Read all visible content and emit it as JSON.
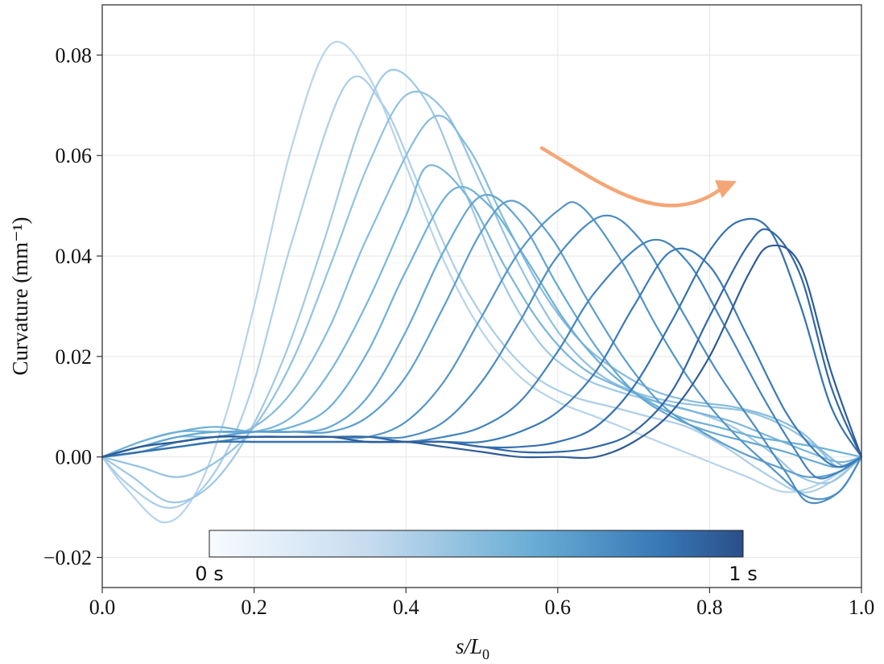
{
  "chart_data": {
    "type": "line",
    "xlabel": "s/L0",
    "xlabel_italic": "s/L",
    "xlabel_sub": "0",
    "ylabel": "Curvature (mm⁻¹)",
    "xlim": [
      0.0,
      1.0
    ],
    "ylim": [
      -0.026,
      0.09
    ],
    "x_ticks": [
      0.0,
      0.2,
      0.4,
      0.6,
      0.8,
      1.0
    ],
    "x_tick_labels": [
      "0.0",
      "0.2",
      "0.4",
      "0.6",
      "0.8",
      "1.0"
    ],
    "y_ticks": [
      -0.02,
      0.0,
      0.02,
      0.04,
      0.06,
      0.08
    ],
    "y_tick_labels": [
      "−0.02",
      "0.00",
      "0.02",
      "0.04",
      "0.06",
      "0.08"
    ],
    "grid": true,
    "colorbar": {
      "min_label": "0 s",
      "max_label": "1 s",
      "colormap": "Blues",
      "colors": [
        "#f7fbff",
        "#c6dbef",
        "#6baed6",
        "#3777b5",
        "#2b4f88"
      ]
    },
    "annotation": {
      "type": "curved-arrow",
      "meaning": "peak travels toward tail over time",
      "color": "#f4a676"
    },
    "series": [
      {
        "t": 0.0,
        "x": [
          0,
          0.03,
          0.08,
          0.12,
          0.16,
          0.2,
          0.25,
          0.3,
          0.35,
          0.4,
          0.45,
          0.5,
          0.55,
          0.6,
          0.65,
          0.7,
          0.75,
          0.8,
          0.85,
          0.9,
          0.95,
          1.0
        ],
        "y": [
          0.0,
          -0.006,
          -0.013,
          -0.008,
          0.007,
          0.03,
          0.062,
          0.082,
          0.076,
          0.058,
          0.039,
          0.025,
          0.016,
          0.011,
          0.008,
          0.005,
          0.002,
          -0.001,
          -0.004,
          -0.007,
          -0.005,
          0.0
        ]
      },
      {
        "t": 0.05,
        "x": [
          0,
          0.03,
          0.08,
          0.12,
          0.16,
          0.2,
          0.25,
          0.32,
          0.37,
          0.42,
          0.47,
          0.52,
          0.57,
          0.62,
          0.67,
          0.72,
          0.77,
          0.82,
          0.87,
          0.92,
          0.96,
          1.0
        ],
        "y": [
          0.0,
          -0.005,
          -0.01,
          -0.008,
          0.0,
          0.015,
          0.043,
          0.074,
          0.07,
          0.053,
          0.036,
          0.024,
          0.016,
          0.012,
          0.01,
          0.008,
          0.006,
          0.002,
          -0.003,
          -0.007,
          -0.005,
          0.0
        ]
      },
      {
        "t": 0.1,
        "x": [
          0,
          0.04,
          0.09,
          0.14,
          0.19,
          0.24,
          0.29,
          0.34,
          0.38,
          0.43,
          0.48,
          0.53,
          0.58,
          0.63,
          0.68,
          0.73,
          0.78,
          0.83,
          0.88,
          0.92,
          0.96,
          1.0
        ],
        "y": [
          0.0,
          -0.004,
          -0.009,
          -0.006,
          0.004,
          0.02,
          0.042,
          0.066,
          0.077,
          0.07,
          0.052,
          0.034,
          0.022,
          0.016,
          0.013,
          0.011,
          0.009,
          0.006,
          0.001,
          -0.004,
          -0.005,
          0.0
        ]
      },
      {
        "t": 0.15,
        "x": [
          0,
          0.05,
          0.1,
          0.15,
          0.2,
          0.25,
          0.3,
          0.35,
          0.4,
          0.45,
          0.5,
          0.55,
          0.6,
          0.65,
          0.7,
          0.75,
          0.8,
          0.85,
          0.9,
          0.94,
          0.97,
          1.0
        ],
        "y": [
          0.0,
          -0.002,
          -0.004,
          -0.001,
          0.006,
          0.019,
          0.038,
          0.058,
          0.072,
          0.069,
          0.054,
          0.038,
          0.025,
          0.017,
          0.013,
          0.011,
          0.01,
          0.009,
          0.006,
          0.002,
          -0.002,
          0.0
        ]
      },
      {
        "t": 0.2,
        "x": [
          0,
          0.05,
          0.1,
          0.15,
          0.2,
          0.25,
          0.3,
          0.35,
          0.43,
          0.48,
          0.53,
          0.58,
          0.63,
          0.68,
          0.73,
          0.78,
          0.83,
          0.88,
          0.92,
          0.95,
          0.98,
          1.0
        ],
        "y": [
          0.0,
          0.002,
          0.004,
          0.004,
          0.006,
          0.013,
          0.026,
          0.044,
          0.067,
          0.062,
          0.047,
          0.033,
          0.023,
          0.017,
          0.013,
          0.011,
          0.01,
          0.008,
          0.005,
          0.001,
          -0.002,
          0.0
        ]
      },
      {
        "t": 0.25,
        "x": [
          0,
          0.05,
          0.1,
          0.15,
          0.2,
          0.25,
          0.3,
          0.35,
          0.4,
          0.43,
          0.48,
          0.53,
          0.58,
          0.63,
          0.68,
          0.73,
          0.78,
          0.83,
          0.88,
          0.93,
          0.97,
          1.0
        ],
        "y": [
          0.0,
          0.003,
          0.005,
          0.005,
          0.005,
          0.008,
          0.017,
          0.031,
          0.048,
          0.058,
          0.052,
          0.038,
          0.026,
          0.018,
          0.014,
          0.011,
          0.009,
          0.007,
          0.004,
          0.001,
          -0.001,
          0.0
        ]
      },
      {
        "t": 0.3,
        "x": [
          0,
          0.05,
          0.1,
          0.15,
          0.2,
          0.25,
          0.3,
          0.35,
          0.4,
          0.46,
          0.51,
          0.56,
          0.61,
          0.66,
          0.71,
          0.76,
          0.81,
          0.86,
          0.9,
          0.94,
          0.97,
          1.0
        ],
        "y": [
          0.0,
          0.003,
          0.005,
          0.006,
          0.005,
          0.006,
          0.01,
          0.021,
          0.037,
          0.053,
          0.05,
          0.039,
          0.027,
          0.018,
          0.012,
          0.008,
          0.006,
          0.004,
          0.003,
          0.002,
          0.001,
          0.0
        ]
      },
      {
        "t": 0.35,
        "x": [
          0,
          0.05,
          0.1,
          0.15,
          0.2,
          0.25,
          0.3,
          0.35,
          0.4,
          0.45,
          0.5,
          0.55,
          0.6,
          0.65,
          0.7,
          0.75,
          0.8,
          0.85,
          0.9,
          0.94,
          0.97,
          1.0
        ],
        "y": [
          0.0,
          0.002,
          0.004,
          0.005,
          0.005,
          0.005,
          0.006,
          0.012,
          0.025,
          0.041,
          0.052,
          0.047,
          0.034,
          0.022,
          0.013,
          0.008,
          0.005,
          0.003,
          0.001,
          -0.001,
          -0.002,
          0.0
        ]
      },
      {
        "t": 0.4,
        "x": [
          0,
          0.05,
          0.1,
          0.15,
          0.2,
          0.25,
          0.3,
          0.35,
          0.4,
          0.45,
          0.5,
          0.54,
          0.59,
          0.64,
          0.69,
          0.74,
          0.79,
          0.84,
          0.89,
          0.93,
          0.97,
          1.0
        ],
        "y": [
          0.0,
          0.001,
          0.003,
          0.004,
          0.005,
          0.005,
          0.005,
          0.008,
          0.016,
          0.03,
          0.045,
          0.051,
          0.044,
          0.031,
          0.019,
          0.01,
          0.005,
          0.001,
          -0.002,
          -0.004,
          -0.003,
          0.0
        ]
      },
      {
        "t": 0.45,
        "x": [
          0,
          0.05,
          0.1,
          0.15,
          0.2,
          0.25,
          0.3,
          0.35,
          0.4,
          0.45,
          0.5,
          0.55,
          0.6,
          0.63,
          0.68,
          0.73,
          0.78,
          0.83,
          0.88,
          0.93,
          0.97,
          1.0
        ],
        "y": [
          0.0,
          0.001,
          0.003,
          0.004,
          0.004,
          0.004,
          0.004,
          0.004,
          0.007,
          0.015,
          0.028,
          0.041,
          0.049,
          0.05,
          0.04,
          0.026,
          0.014,
          0.005,
          -0.002,
          -0.008,
          -0.007,
          0.0
        ]
      },
      {
        "t": 0.5,
        "x": [
          0,
          0.05,
          0.1,
          0.15,
          0.2,
          0.25,
          0.3,
          0.35,
          0.4,
          0.45,
          0.5,
          0.55,
          0.6,
          0.66,
          0.71,
          0.76,
          0.81,
          0.86,
          0.9,
          0.93,
          0.97,
          1.0
        ],
        "y": [
          0.0,
          0.001,
          0.002,
          0.003,
          0.004,
          0.004,
          0.004,
          0.004,
          0.004,
          0.007,
          0.015,
          0.027,
          0.04,
          0.048,
          0.043,
          0.03,
          0.017,
          0.006,
          -0.003,
          -0.009,
          -0.007,
          0.0
        ]
      },
      {
        "t": 0.55,
        "x": [
          0,
          0.05,
          0.1,
          0.15,
          0.2,
          0.25,
          0.3,
          0.35,
          0.4,
          0.45,
          0.5,
          0.55,
          0.6,
          0.65,
          0.72,
          0.77,
          0.82,
          0.87,
          0.91,
          0.94,
          0.97,
          1.0
        ],
        "y": [
          0.0,
          0.001,
          0.002,
          0.003,
          0.003,
          0.003,
          0.003,
          0.003,
          0.003,
          0.004,
          0.006,
          0.011,
          0.021,
          0.033,
          0.043,
          0.039,
          0.026,
          0.012,
          0.002,
          -0.004,
          -0.003,
          0.0
        ]
      },
      {
        "t": 0.6,
        "x": [
          0,
          0.05,
          0.1,
          0.15,
          0.2,
          0.25,
          0.3,
          0.35,
          0.4,
          0.45,
          0.5,
          0.55,
          0.6,
          0.65,
          0.7,
          0.75,
          0.8,
          0.85,
          0.9,
          0.94,
          0.97,
          1.0
        ],
        "y": [
          0.0,
          0.001,
          0.002,
          0.003,
          0.003,
          0.003,
          0.003,
          0.003,
          0.003,
          0.003,
          0.003,
          0.005,
          0.009,
          0.017,
          0.03,
          0.041,
          0.038,
          0.024,
          0.009,
          0.001,
          -0.002,
          0.0
        ]
      },
      {
        "t": 0.65,
        "x": [
          0,
          0.05,
          0.1,
          0.15,
          0.2,
          0.25,
          0.3,
          0.35,
          0.4,
          0.45,
          0.5,
          0.55,
          0.6,
          0.65,
          0.7,
          0.75,
          0.8,
          0.84,
          0.88,
          0.92,
          0.96,
          1.0
        ],
        "y": [
          0.0,
          0.001,
          0.002,
          0.003,
          0.003,
          0.003,
          0.003,
          0.003,
          0.003,
          0.003,
          0.002,
          0.002,
          0.003,
          0.006,
          0.014,
          0.027,
          0.041,
          0.047,
          0.045,
          0.03,
          0.01,
          0.0
        ]
      },
      {
        "t": 0.7,
        "x": [
          0,
          0.05,
          0.1,
          0.15,
          0.2,
          0.25,
          0.3,
          0.35,
          0.4,
          0.45,
          0.5,
          0.55,
          0.6,
          0.65,
          0.7,
          0.75,
          0.8,
          0.85,
          0.88,
          0.92,
          0.96,
          1.0
        ],
        "y": [
          0.0,
          0.002,
          0.003,
          0.004,
          0.004,
          0.004,
          0.004,
          0.004,
          0.003,
          0.003,
          0.002,
          0.001,
          0.001,
          0.002,
          0.005,
          0.013,
          0.028,
          0.042,
          0.045,
          0.036,
          0.014,
          0.0
        ]
      },
      {
        "t": 0.75,
        "x": [
          0,
          0.05,
          0.1,
          0.15,
          0.2,
          0.25,
          0.3,
          0.35,
          0.4,
          0.45,
          0.5,
          0.55,
          0.6,
          0.65,
          0.7,
          0.75,
          0.8,
          0.85,
          0.88,
          0.92,
          0.96,
          1.0
        ],
        "y": [
          0.0,
          0.002,
          0.003,
          0.004,
          0.004,
          0.004,
          0.004,
          0.003,
          0.003,
          0.002,
          0.001,
          0.0,
          0.0,
          0.0,
          0.003,
          0.009,
          0.02,
          0.036,
          0.042,
          0.038,
          0.017,
          0.0
        ]
      }
    ]
  }
}
